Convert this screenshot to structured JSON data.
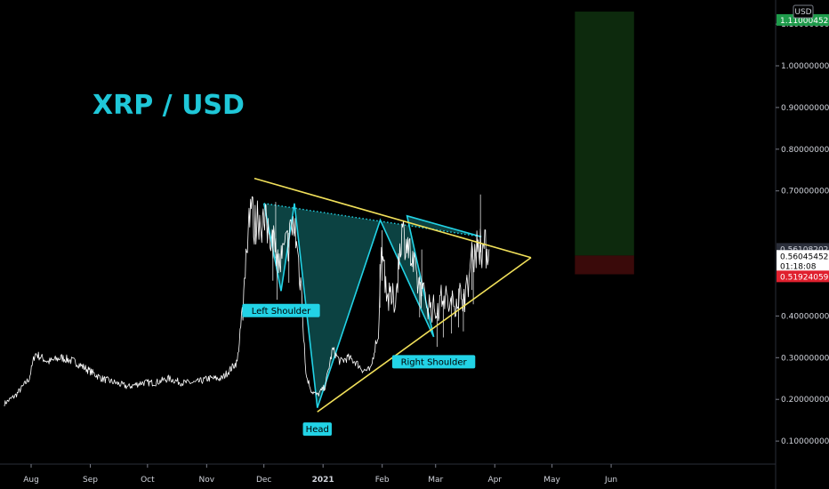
{
  "chart_data": {
    "type": "line",
    "title": "XRP / USD",
    "currency_badge": "USD",
    "colors": {
      "background": "#000000",
      "price": "#ffffff",
      "pattern_fill": "#0e4d4d",
      "pattern_line": "#22d3e6",
      "triangle_line": "#f1e05a",
      "target_zone": "#0d2a0d",
      "stop_zone": "#3a0a0a",
      "label_bg": "#22d3e6"
    },
    "x_ticks": [
      "Aug",
      "Sep",
      "Oct",
      "Nov",
      "Dec",
      "2021",
      "Feb",
      "Mar",
      "Apr",
      "May",
      "Jun"
    ],
    "y_ticks": [
      "1.10000000",
      "1.00000000",
      "0.90000000",
      "0.80000000",
      "0.70000000",
      "0.40000000",
      "0.30000000",
      "0.20000000",
      "0.10000000"
    ],
    "ylim": [
      0.0,
      1.16
    ],
    "x": [
      "2020-07-18",
      "2020-07-24",
      "2020-07-31",
      "2020-08-03",
      "2020-08-10",
      "2020-08-17",
      "2020-08-24",
      "2020-08-31",
      "2020-09-07",
      "2020-09-14",
      "2020-09-21",
      "2020-09-28",
      "2020-10-05",
      "2020-10-12",
      "2020-10-19",
      "2020-10-26",
      "2020-11-02",
      "2020-11-09",
      "2020-11-13",
      "2020-11-17",
      "2020-11-20",
      "2020-11-22",
      "2020-11-24",
      "2020-11-26",
      "2020-11-28",
      "2020-12-01",
      "2020-12-05",
      "2020-12-09",
      "2020-12-13",
      "2020-12-17",
      "2020-12-21",
      "2020-12-23",
      "2020-12-26",
      "2020-12-29",
      "2021-01-02",
      "2021-01-06",
      "2021-01-10",
      "2021-01-14",
      "2021-01-18",
      "2021-01-22",
      "2021-01-26",
      "2021-01-30",
      "2021-02-01",
      "2021-02-04",
      "2021-02-08",
      "2021-02-11",
      "2021-02-14",
      "2021-02-17",
      "2021-02-21",
      "2021-02-25",
      "2021-03-01",
      "2021-03-05",
      "2021-03-09",
      "2021-03-13",
      "2021-03-17",
      "2021-03-20",
      "2021-03-23",
      "2021-03-26",
      "2021-03-29"
    ],
    "close": [
      0.19,
      0.21,
      0.25,
      0.31,
      0.29,
      0.3,
      0.29,
      0.27,
      0.25,
      0.24,
      0.23,
      0.24,
      0.24,
      0.25,
      0.24,
      0.24,
      0.25,
      0.25,
      0.27,
      0.29,
      0.42,
      0.58,
      0.68,
      0.61,
      0.64,
      0.62,
      0.6,
      0.52,
      0.57,
      0.62,
      0.45,
      0.26,
      0.22,
      0.21,
      0.23,
      0.32,
      0.29,
      0.3,
      0.29,
      0.27,
      0.27,
      0.37,
      0.56,
      0.44,
      0.44,
      0.6,
      0.58,
      0.52,
      0.46,
      0.43,
      0.41,
      0.45,
      0.42,
      0.45,
      0.45,
      0.54,
      0.57,
      0.56,
      0.56
    ],
    "current_price": "0.56045452",
    "countdown": "01:18:08",
    "target_price": "1.10000000",
    "stop_price": "0.51924059",
    "upper_price": "0.56108202",
    "target_price_tag": "1.11000452",
    "annotations": [
      "Left Shoulder",
      "Head",
      "Right Shoulder"
    ],
    "pattern": {
      "neckline_start": {
        "x": "2020-12-01",
        "y": 0.67
      },
      "neckline_end": {
        "x": "2021-03-25",
        "y": 0.59
      },
      "left_shoulder": {
        "x": "2020-12-10",
        "y": 0.46
      },
      "head": {
        "x": "2020-12-29",
        "y": 0.18
      },
      "right_shoulder": {
        "x": "2021-02-28",
        "y": 0.35
      },
      "peak_1": {
        "x": "2020-12-17",
        "y": 0.67
      },
      "peak_2": {
        "x": "2021-01-31",
        "y": 0.63
      },
      "peak_3": {
        "x": "2021-02-14",
        "y": 0.64
      }
    },
    "triangle": {
      "top_start": {
        "x": "2020-11-26",
        "y": 0.73
      },
      "apex": {
        "x": "2021-04-20",
        "y": 0.54
      },
      "bottom_start": {
        "x": "2020-12-29",
        "y": 0.17
      }
    }
  }
}
